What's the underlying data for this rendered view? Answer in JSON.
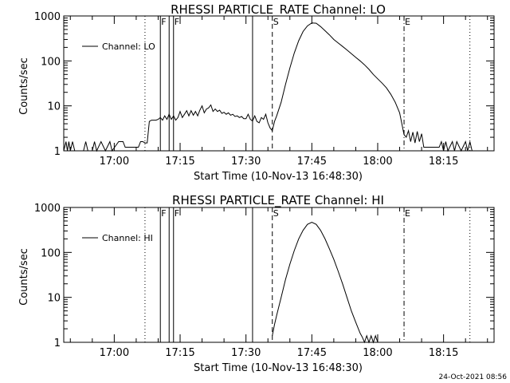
{
  "footer_stamp": "24-Oct-2021 08:56",
  "chart_data": [
    {
      "type": "line",
      "title": "RHESSI PARTICLE_RATE Channel: LO",
      "xlabel": "Start Time (10-Nov-13 16:48:30)",
      "ylabel": "Counts/sec",
      "yscale": "log",
      "ylim": [
        1,
        1000
      ],
      "y_ticks": [
        {
          "value": 1,
          "label": "1"
        },
        {
          "value": 10,
          "label": "10"
        },
        {
          "value": 100,
          "label": "100"
        },
        {
          "value": 1000,
          "label": "1000"
        }
      ],
      "x_ticks": [
        {
          "value": "17:00",
          "label": "17:00"
        },
        {
          "value": "17:15",
          "label": "17:15"
        },
        {
          "value": "17:30",
          "label": "17:30"
        },
        {
          "value": "17:45",
          "label": "17:45"
        },
        {
          "value": "18:00",
          "label": "18:00"
        },
        {
          "value": "18:15",
          "label": "18:15"
        }
      ],
      "legend": {
        "label": "Channel: LO",
        "placement": "top-left"
      },
      "grid": false,
      "vertical_lines": [
        {
          "x": "17:07:00",
          "style": "dotted"
        },
        {
          "x": "17:10:30",
          "style": "solid",
          "label": "F"
        },
        {
          "x": "17:12:30",
          "style": "solid"
        },
        {
          "x": "17:13:30",
          "style": "solid",
          "label": "F"
        },
        {
          "x": "17:31:30",
          "style": "solid"
        },
        {
          "x": "17:36:00",
          "style": "dashed",
          "label": "S"
        },
        {
          "x": "18:06:00",
          "style": "dashdot",
          "label": "E"
        },
        {
          "x": "18:21:00",
          "style": "dotted"
        }
      ],
      "series": [
        {
          "name": "Channel: LO",
          "points": [
            [
              "16:48:30",
              1
            ],
            [
              "16:49:00",
              1.6
            ],
            [
              "16:49:20",
              1
            ],
            [
              "16:49:40",
              1.6
            ],
            [
              "16:50:00",
              1
            ],
            [
              "16:50:30",
              1.6
            ],
            [
              "16:51:00",
              1
            ],
            [
              "16:53:00",
              1
            ],
            [
              "16:53:30",
              1.6
            ],
            [
              "16:54:00",
              1
            ],
            [
              "16:55:00",
              1
            ],
            [
              "16:55:30",
              1.6
            ],
            [
              "16:56:00",
              1
            ],
            [
              "16:57:00",
              1.6
            ],
            [
              "16:58:00",
              1
            ],
            [
              "16:59:00",
              1.6
            ],
            [
              "16:59:30",
              1
            ],
            [
              "17:01:00",
              1.6
            ],
            [
              "17:02:00",
              1.6
            ],
            [
              "17:02:30",
              1.2
            ],
            [
              "17:05:30",
              1.2
            ],
            [
              "17:06:00",
              1.6
            ],
            [
              "17:06:30",
              1.6
            ],
            [
              "17:07:00",
              1.5
            ],
            [
              "17:07:30",
              1.5
            ],
            [
              "17:08:00",
              4.5
            ],
            [
              "17:08:30",
              4.8
            ],
            [
              "17:09:30",
              4.8
            ],
            [
              "17:10:00",
              5
            ],
            [
              "17:10:30",
              5.5
            ],
            [
              "17:11:00",
              4.8
            ],
            [
              "17:11:30",
              6
            ],
            [
              "17:12:00",
              5
            ],
            [
              "17:12:30",
              6.5
            ],
            [
              "17:13:00",
              5
            ],
            [
              "17:13:30",
              6
            ],
            [
              "17:14:00",
              4.8
            ],
            [
              "17:14:30",
              5.5
            ],
            [
              "17:15:00",
              7.5
            ],
            [
              "17:15:30",
              5.5
            ],
            [
              "17:16:00",
              6.5
            ],
            [
              "17:16:30",
              7.8
            ],
            [
              "17:17:00",
              6
            ],
            [
              "17:17:30",
              7.8
            ],
            [
              "17:18:00",
              6.2
            ],
            [
              "17:18:30",
              7.5
            ],
            [
              "17:19:00",
              6
            ],
            [
              "17:19:30",
              8
            ],
            [
              "17:20:00",
              10
            ],
            [
              "17:20:30",
              7
            ],
            [
              "17:21:00",
              8.5
            ],
            [
              "17:21:30",
              9
            ],
            [
              "17:22:00",
              10.5
            ],
            [
              "17:22:30",
              7.5
            ],
            [
              "17:23:00",
              8.5
            ],
            [
              "17:23:30",
              7.5
            ],
            [
              "17:24:00",
              8
            ],
            [
              "17:24:30",
              6.8
            ],
            [
              "17:25:00",
              7.2
            ],
            [
              "17:25:30",
              6.5
            ],
            [
              "17:26:00",
              7
            ],
            [
              "17:26:30",
              6.2
            ],
            [
              "17:27:00",
              6.5
            ],
            [
              "17:27:30",
              5.8
            ],
            [
              "17:28:00",
              6
            ],
            [
              "17:28:30",
              5.5
            ],
            [
              "17:29:00",
              5.8
            ],
            [
              "17:29:30",
              5.2
            ],
            [
              "17:30:00",
              5.2
            ],
            [
              "17:30:30",
              6.5
            ],
            [
              "17:31:00",
              5
            ],
            [
              "17:31:30",
              4.6
            ],
            [
              "17:32:00",
              6
            ],
            [
              "17:32:30",
              4.5
            ],
            [
              "17:33:00",
              4.2
            ],
            [
              "17:33:30",
              5.5
            ],
            [
              "17:34:00",
              5
            ],
            [
              "17:34:30",
              6.5
            ],
            [
              "17:35:00",
              4.2
            ],
            [
              "17:35:30",
              3.2
            ],
            [
              "17:36:00",
              2.8
            ],
            [
              "17:36:30",
              4.5
            ],
            [
              "17:37:00",
              6
            ],
            [
              "17:38:00",
              12
            ],
            [
              "17:39:00",
              30
            ],
            [
              "17:40:00",
              70
            ],
            [
              "17:41:00",
              150
            ],
            [
              "17:42:00",
              280
            ],
            [
              "17:43:00",
              450
            ],
            [
              "17:44:00",
              600
            ],
            [
              "17:45:00",
              700
            ],
            [
              "17:46:00",
              690
            ],
            [
              "17:47:00",
              580
            ],
            [
              "17:48:00",
              470
            ],
            [
              "17:49:00",
              380
            ],
            [
              "17:50:00",
              300
            ],
            [
              "17:51:00",
              250
            ],
            [
              "17:52:00",
              210
            ],
            [
              "17:53:00",
              175
            ],
            [
              "17:54:00",
              145
            ],
            [
              "17:55:00",
              120
            ],
            [
              "17:56:00",
              100
            ],
            [
              "17:57:00",
              82
            ],
            [
              "17:58:00",
              65
            ],
            [
              "17:59:00",
              50
            ],
            [
              "18:00:00",
              40
            ],
            [
              "18:01:00",
              32
            ],
            [
              "18:02:00",
              25
            ],
            [
              "18:03:00",
              18
            ],
            [
              "18:04:00",
              12
            ],
            [
              "18:05:00",
              7
            ],
            [
              "18:05:30",
              4
            ],
            [
              "18:06:00",
              2.3
            ],
            [
              "18:06:30",
              2
            ],
            [
              "18:07:00",
              2.8
            ],
            [
              "18:07:30",
              1.6
            ],
            [
              "18:08:00",
              2.6
            ],
            [
              "18:08:30",
              1.5
            ],
            [
              "18:09:00",
              2.7
            ],
            [
              "18:09:30",
              1.6
            ],
            [
              "18:10:00",
              2.4
            ],
            [
              "18:10:30",
              1.2
            ],
            [
              "18:13:00",
              1.2
            ],
            [
              "18:14:00",
              1.2
            ],
            [
              "18:14:30",
              1.6
            ],
            [
              "18:15:00",
              1
            ],
            [
              "18:15:30",
              1.6
            ],
            [
              "18:16:00",
              1
            ],
            [
              "18:17:00",
              1.6
            ],
            [
              "18:17:30",
              1
            ],
            [
              "18:18:00",
              1.6
            ],
            [
              "18:19:00",
              1
            ],
            [
              "18:20:00",
              1.6
            ],
            [
              "18:20:30",
              1
            ],
            [
              "18:21:00",
              1.6
            ],
            [
              "18:21:30",
              1
            ]
          ]
        }
      ]
    },
    {
      "type": "line",
      "title": "RHESSI PARTICLE_RATE Channel: HI",
      "xlabel": "Start Time (10-Nov-13 16:48:30)",
      "ylabel": "Counts/sec",
      "yscale": "log",
      "ylim": [
        1,
        1000
      ],
      "y_ticks": [
        {
          "value": 1,
          "label": "1"
        },
        {
          "value": 10,
          "label": "10"
        },
        {
          "value": 100,
          "label": "100"
        },
        {
          "value": 1000,
          "label": "1000"
        }
      ],
      "x_ticks": [
        {
          "value": "17:00",
          "label": "17:00"
        },
        {
          "value": "17:15",
          "label": "17:15"
        },
        {
          "value": "17:30",
          "label": "17:30"
        },
        {
          "value": "17:45",
          "label": "17:45"
        },
        {
          "value": "18:00",
          "label": "18:00"
        },
        {
          "value": "18:15",
          "label": "18:15"
        }
      ],
      "legend": {
        "label": "Channel: HI",
        "placement": "top-left"
      },
      "grid": false,
      "vertical_lines": [
        {
          "x": "17:07:00",
          "style": "dotted"
        },
        {
          "x": "17:10:30",
          "style": "solid",
          "label": "F"
        },
        {
          "x": "17:12:30",
          "style": "solid"
        },
        {
          "x": "17:13:30",
          "style": "solid",
          "label": "F"
        },
        {
          "x": "17:31:30",
          "style": "solid"
        },
        {
          "x": "17:36:00",
          "style": "dashed",
          "label": "S"
        },
        {
          "x": "18:06:00",
          "style": "dashdot",
          "label": "E"
        },
        {
          "x": "18:21:00",
          "style": "dotted"
        }
      ],
      "series": [
        {
          "name": "Channel: HI",
          "points": [
            [
              "17:36:00",
              1.4
            ],
            [
              "17:36:30",
              2.5
            ],
            [
              "17:37:00",
              4
            ],
            [
              "17:38:00",
              10
            ],
            [
              "17:39:00",
              25
            ],
            [
              "17:40:00",
              55
            ],
            [
              "17:41:00",
              110
            ],
            [
              "17:42:00",
              200
            ],
            [
              "17:43:00",
              310
            ],
            [
              "17:44:00",
              420
            ],
            [
              "17:45:00",
              470
            ],
            [
              "17:46:00",
              420
            ],
            [
              "17:47:00",
              310
            ],
            [
              "17:48:00",
              200
            ],
            [
              "17:49:00",
              120
            ],
            [
              "17:50:00",
              70
            ],
            [
              "17:51:00",
              38
            ],
            [
              "17:52:00",
              20
            ],
            [
              "17:53:00",
              10
            ],
            [
              "17:54:00",
              5
            ],
            [
              "17:55:00",
              2.8
            ],
            [
              "17:56:00",
              1.6
            ],
            [
              "17:56:30",
              1.3
            ],
            [
              "17:57:00",
              1
            ],
            [
              "17:57:30",
              1.4
            ],
            [
              "17:58:00",
              1
            ],
            [
              "17:58:30",
              1.4
            ],
            [
              "17:59:00",
              1
            ],
            [
              "17:59:30",
              1.4
            ],
            [
              "18:00:00",
              1
            ]
          ]
        }
      ]
    }
  ]
}
